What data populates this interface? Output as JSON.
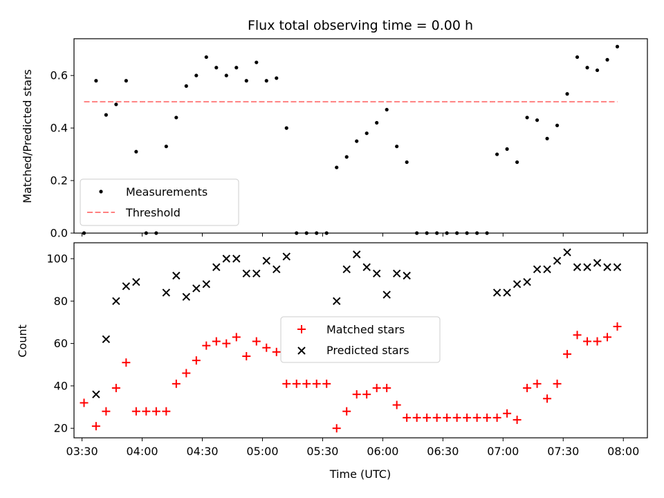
{
  "chart_data": [
    {
      "type": "scatter",
      "title": "Flux total observing time = 0.00 h",
      "ylabel": "Matched/Predicted stars",
      "ylim": [
        0,
        0.74
      ],
      "yticks": [
        0.0,
        0.2,
        0.4,
        0.6
      ],
      "ytick_labels": [
        "0.0",
        "0.2",
        "0.4",
        "0.6"
      ],
      "xlim": [
        "03:26",
        "08:12"
      ],
      "legend_position": "lower-left",
      "grid": false,
      "series": [
        {
          "name": "Measurements",
          "kind": "scatter",
          "marker": "dot",
          "color": "#000000",
          "points": [
            [
              "03:31",
              0.0
            ],
            [
              "03:37",
              0.58
            ],
            [
              "03:42",
              0.45
            ],
            [
              "03:47",
              0.49
            ],
            [
              "03:52",
              0.58
            ],
            [
              "03:57",
              0.31
            ],
            [
              "04:02",
              0.0
            ],
            [
              "04:07",
              0.0
            ],
            [
              "04:12",
              0.33
            ],
            [
              "04:17",
              0.44
            ],
            [
              "04:22",
              0.56
            ],
            [
              "04:27",
              0.6
            ],
            [
              "04:32",
              0.67
            ],
            [
              "04:37",
              0.63
            ],
            [
              "04:42",
              0.6
            ],
            [
              "04:47",
              0.63
            ],
            [
              "04:52",
              0.58
            ],
            [
              "04:57",
              0.65
            ],
            [
              "05:02",
              0.58
            ],
            [
              "05:07",
              0.59
            ],
            [
              "05:12",
              0.4
            ],
            [
              "05:17",
              0.0
            ],
            [
              "05:22",
              0.0
            ],
            [
              "05:27",
              0.0
            ],
            [
              "05:32",
              0.0
            ],
            [
              "05:37",
              0.25
            ],
            [
              "05:42",
              0.29
            ],
            [
              "05:47",
              0.35
            ],
            [
              "05:52",
              0.38
            ],
            [
              "05:57",
              0.42
            ],
            [
              "06:02",
              0.47
            ],
            [
              "06:07",
              0.33
            ],
            [
              "06:12",
              0.27
            ],
            [
              "06:17",
              0.0
            ],
            [
              "06:22",
              0.0
            ],
            [
              "06:27",
              0.0
            ],
            [
              "06:32",
              0.0
            ],
            [
              "06:37",
              0.0
            ],
            [
              "06:42",
              0.0
            ],
            [
              "06:47",
              0.0
            ],
            [
              "06:52",
              0.0
            ],
            [
              "06:57",
              0.3
            ],
            [
              "07:02",
              0.32
            ],
            [
              "07:07",
              0.27
            ],
            [
              "07:12",
              0.44
            ],
            [
              "07:17",
              0.43
            ],
            [
              "07:22",
              0.36
            ],
            [
              "07:27",
              0.41
            ],
            [
              "07:32",
              0.53
            ],
            [
              "07:37",
              0.67
            ],
            [
              "07:42",
              0.63
            ],
            [
              "07:47",
              0.62
            ],
            [
              "07:52",
              0.66
            ],
            [
              "07:57",
              0.71
            ]
          ]
        },
        {
          "name": "Threshold",
          "kind": "line",
          "style": "dashed",
          "color": "#ff8080",
          "points": [
            [
              "03:31",
              0.5
            ],
            [
              "07:57",
              0.5
            ]
          ]
        }
      ]
    },
    {
      "type": "scatter",
      "xlabel": "Time (UTC)",
      "ylabel": "Count",
      "ylim": [
        15.5,
        107.5
      ],
      "yticks": [
        20,
        40,
        60,
        80,
        100
      ],
      "ytick_labels": [
        "20",
        "40",
        "60",
        "80",
        "100"
      ],
      "xlim": [
        "03:26",
        "08:12"
      ],
      "xticks": [
        "03:30",
        "04:00",
        "04:30",
        "05:00",
        "05:30",
        "06:00",
        "06:30",
        "07:00",
        "07:30",
        "08:00"
      ],
      "xtick_labels": [
        "03:30",
        "04:00",
        "04:30",
        "05:00",
        "05:30",
        "06:00",
        "06:30",
        "07:00",
        "07:30",
        "08:00"
      ],
      "legend_position": "center",
      "grid": false,
      "series": [
        {
          "name": "Matched stars",
          "kind": "scatter",
          "marker": "plus",
          "color": "#ff0000",
          "points": [
            [
              "03:31",
              32
            ],
            [
              "03:37",
              21
            ],
            [
              "03:42",
              28
            ],
            [
              "03:47",
              39
            ],
            [
              "03:52",
              51
            ],
            [
              "03:57",
              28
            ],
            [
              "04:02",
              28
            ],
            [
              "04:07",
              28
            ],
            [
              "04:12",
              28
            ],
            [
              "04:17",
              41
            ],
            [
              "04:22",
              46
            ],
            [
              "04:27",
              52
            ],
            [
              "04:32",
              59
            ],
            [
              "04:37",
              61
            ],
            [
              "04:42",
              60
            ],
            [
              "04:47",
              63
            ],
            [
              "04:52",
              54
            ],
            [
              "04:57",
              61
            ],
            [
              "05:02",
              58
            ],
            [
              "05:07",
              56
            ],
            [
              "05:12",
              41
            ],
            [
              "05:17",
              41
            ],
            [
              "05:22",
              41
            ],
            [
              "05:27",
              41
            ],
            [
              "05:32",
              41
            ],
            [
              "05:37",
              20
            ],
            [
              "05:42",
              28
            ],
            [
              "05:47",
              36
            ],
            [
              "05:52",
              36
            ],
            [
              "05:57",
              39
            ],
            [
              "06:02",
              39
            ],
            [
              "06:07",
              31
            ],
            [
              "06:12",
              25
            ],
            [
              "06:17",
              25
            ],
            [
              "06:22",
              25
            ],
            [
              "06:27",
              25
            ],
            [
              "06:32",
              25
            ],
            [
              "06:37",
              25
            ],
            [
              "06:42",
              25
            ],
            [
              "06:47",
              25
            ],
            [
              "06:52",
              25
            ],
            [
              "06:57",
              25
            ],
            [
              "07:02",
              27
            ],
            [
              "07:07",
              24
            ],
            [
              "07:12",
              39
            ],
            [
              "07:17",
              41
            ],
            [
              "07:22",
              34
            ],
            [
              "07:27",
              41
            ],
            [
              "07:32",
              55
            ],
            [
              "07:37",
              64
            ],
            [
              "07:42",
              61
            ],
            [
              "07:47",
              61
            ],
            [
              "07:52",
              63
            ],
            [
              "07:57",
              68
            ]
          ]
        },
        {
          "name": "Predicted stars",
          "kind": "scatter",
          "marker": "x",
          "color": "#000000",
          "points": [
            [
              "03:37",
              36
            ],
            [
              "03:42",
              62
            ],
            [
              "03:47",
              80
            ],
            [
              "03:52",
              87
            ],
            [
              "03:57",
              89
            ],
            [
              "04:12",
              84
            ],
            [
              "04:17",
              92
            ],
            [
              "04:22",
              82
            ],
            [
              "04:27",
              86
            ],
            [
              "04:32",
              88
            ],
            [
              "04:37",
              96
            ],
            [
              "04:42",
              100
            ],
            [
              "04:47",
              100
            ],
            [
              "04:52",
              93
            ],
            [
              "04:57",
              93
            ],
            [
              "05:02",
              99
            ],
            [
              "05:07",
              95
            ],
            [
              "05:12",
              101
            ],
            [
              "05:37",
              80
            ],
            [
              "05:42",
              95
            ],
            [
              "05:47",
              102
            ],
            [
              "05:52",
              96
            ],
            [
              "05:57",
              93
            ],
            [
              "06:02",
              83
            ],
            [
              "06:07",
              93
            ],
            [
              "06:12",
              92
            ],
            [
              "06:57",
              84
            ],
            [
              "07:02",
              84
            ],
            [
              "07:07",
              88
            ],
            [
              "07:12",
              89
            ],
            [
              "07:17",
              95
            ],
            [
              "07:22",
              95
            ],
            [
              "07:27",
              99
            ],
            [
              "07:32",
              103
            ],
            [
              "07:37",
              96
            ],
            [
              "07:42",
              96
            ],
            [
              "07:47",
              98
            ],
            [
              "07:52",
              96
            ],
            [
              "07:57",
              96
            ]
          ]
        }
      ]
    }
  ]
}
